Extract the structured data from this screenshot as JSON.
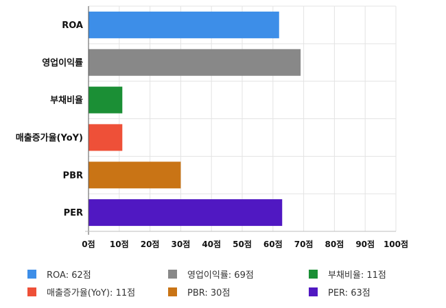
{
  "chart_data": {
    "type": "bar",
    "orientation": "horizontal",
    "categories": [
      "ROA",
      "영업이익률",
      "부채비율",
      "매출증가율(YoY)",
      "PBR",
      "PER"
    ],
    "values": [
      62,
      69,
      11,
      11,
      30,
      63
    ],
    "colors": [
      "#3d8ee8",
      "#888888",
      "#1b8f35",
      "#ee5038",
      "#c97415",
      "#5018c2"
    ],
    "xlim": [
      0,
      100
    ],
    "xticks": [
      0,
      10,
      20,
      30,
      40,
      50,
      60,
      70,
      80,
      90,
      100
    ],
    "xtick_labels": [
      "0점",
      "10점",
      "20점",
      "30점",
      "40점",
      "50점",
      "60점",
      "70점",
      "80점",
      "90점",
      "100점"
    ],
    "grid": true,
    "legend_position": "bottom",
    "legend": [
      {
        "label": "ROA: 62점",
        "color": "#3d8ee8"
      },
      {
        "label": "영업이익률: 69점",
        "color": "#888888"
      },
      {
        "label": "부채비율: 11점",
        "color": "#1b8f35"
      },
      {
        "label": "매출증가율(YoY): 11점",
        "color": "#ee5038"
      },
      {
        "label": "PBR: 30점",
        "color": "#c97415"
      },
      {
        "label": "PER: 63점",
        "color": "#5018c2"
      }
    ]
  }
}
